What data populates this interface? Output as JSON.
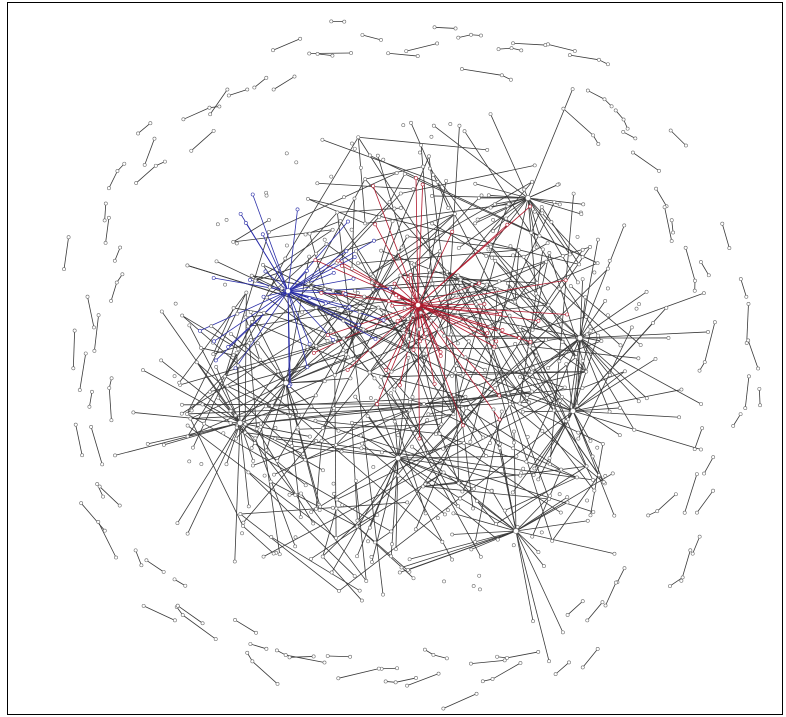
{
  "diagram": {
    "type": "network-graph",
    "layout": "radial",
    "colors": {
      "edge_default": "#3a3a3a",
      "node_default": "#6b6b6b",
      "cluster_blue": "#2b2fa8",
      "cluster_red": "#b01a2e",
      "background": "#ffffff",
      "border": "#000000"
    },
    "highlighted_clusters": [
      {
        "color_key": "cluster_blue",
        "hub_node": "hub-blue"
      },
      {
        "color_key": "cluster_red",
        "hub_node": "hub-red"
      }
    ]
  }
}
